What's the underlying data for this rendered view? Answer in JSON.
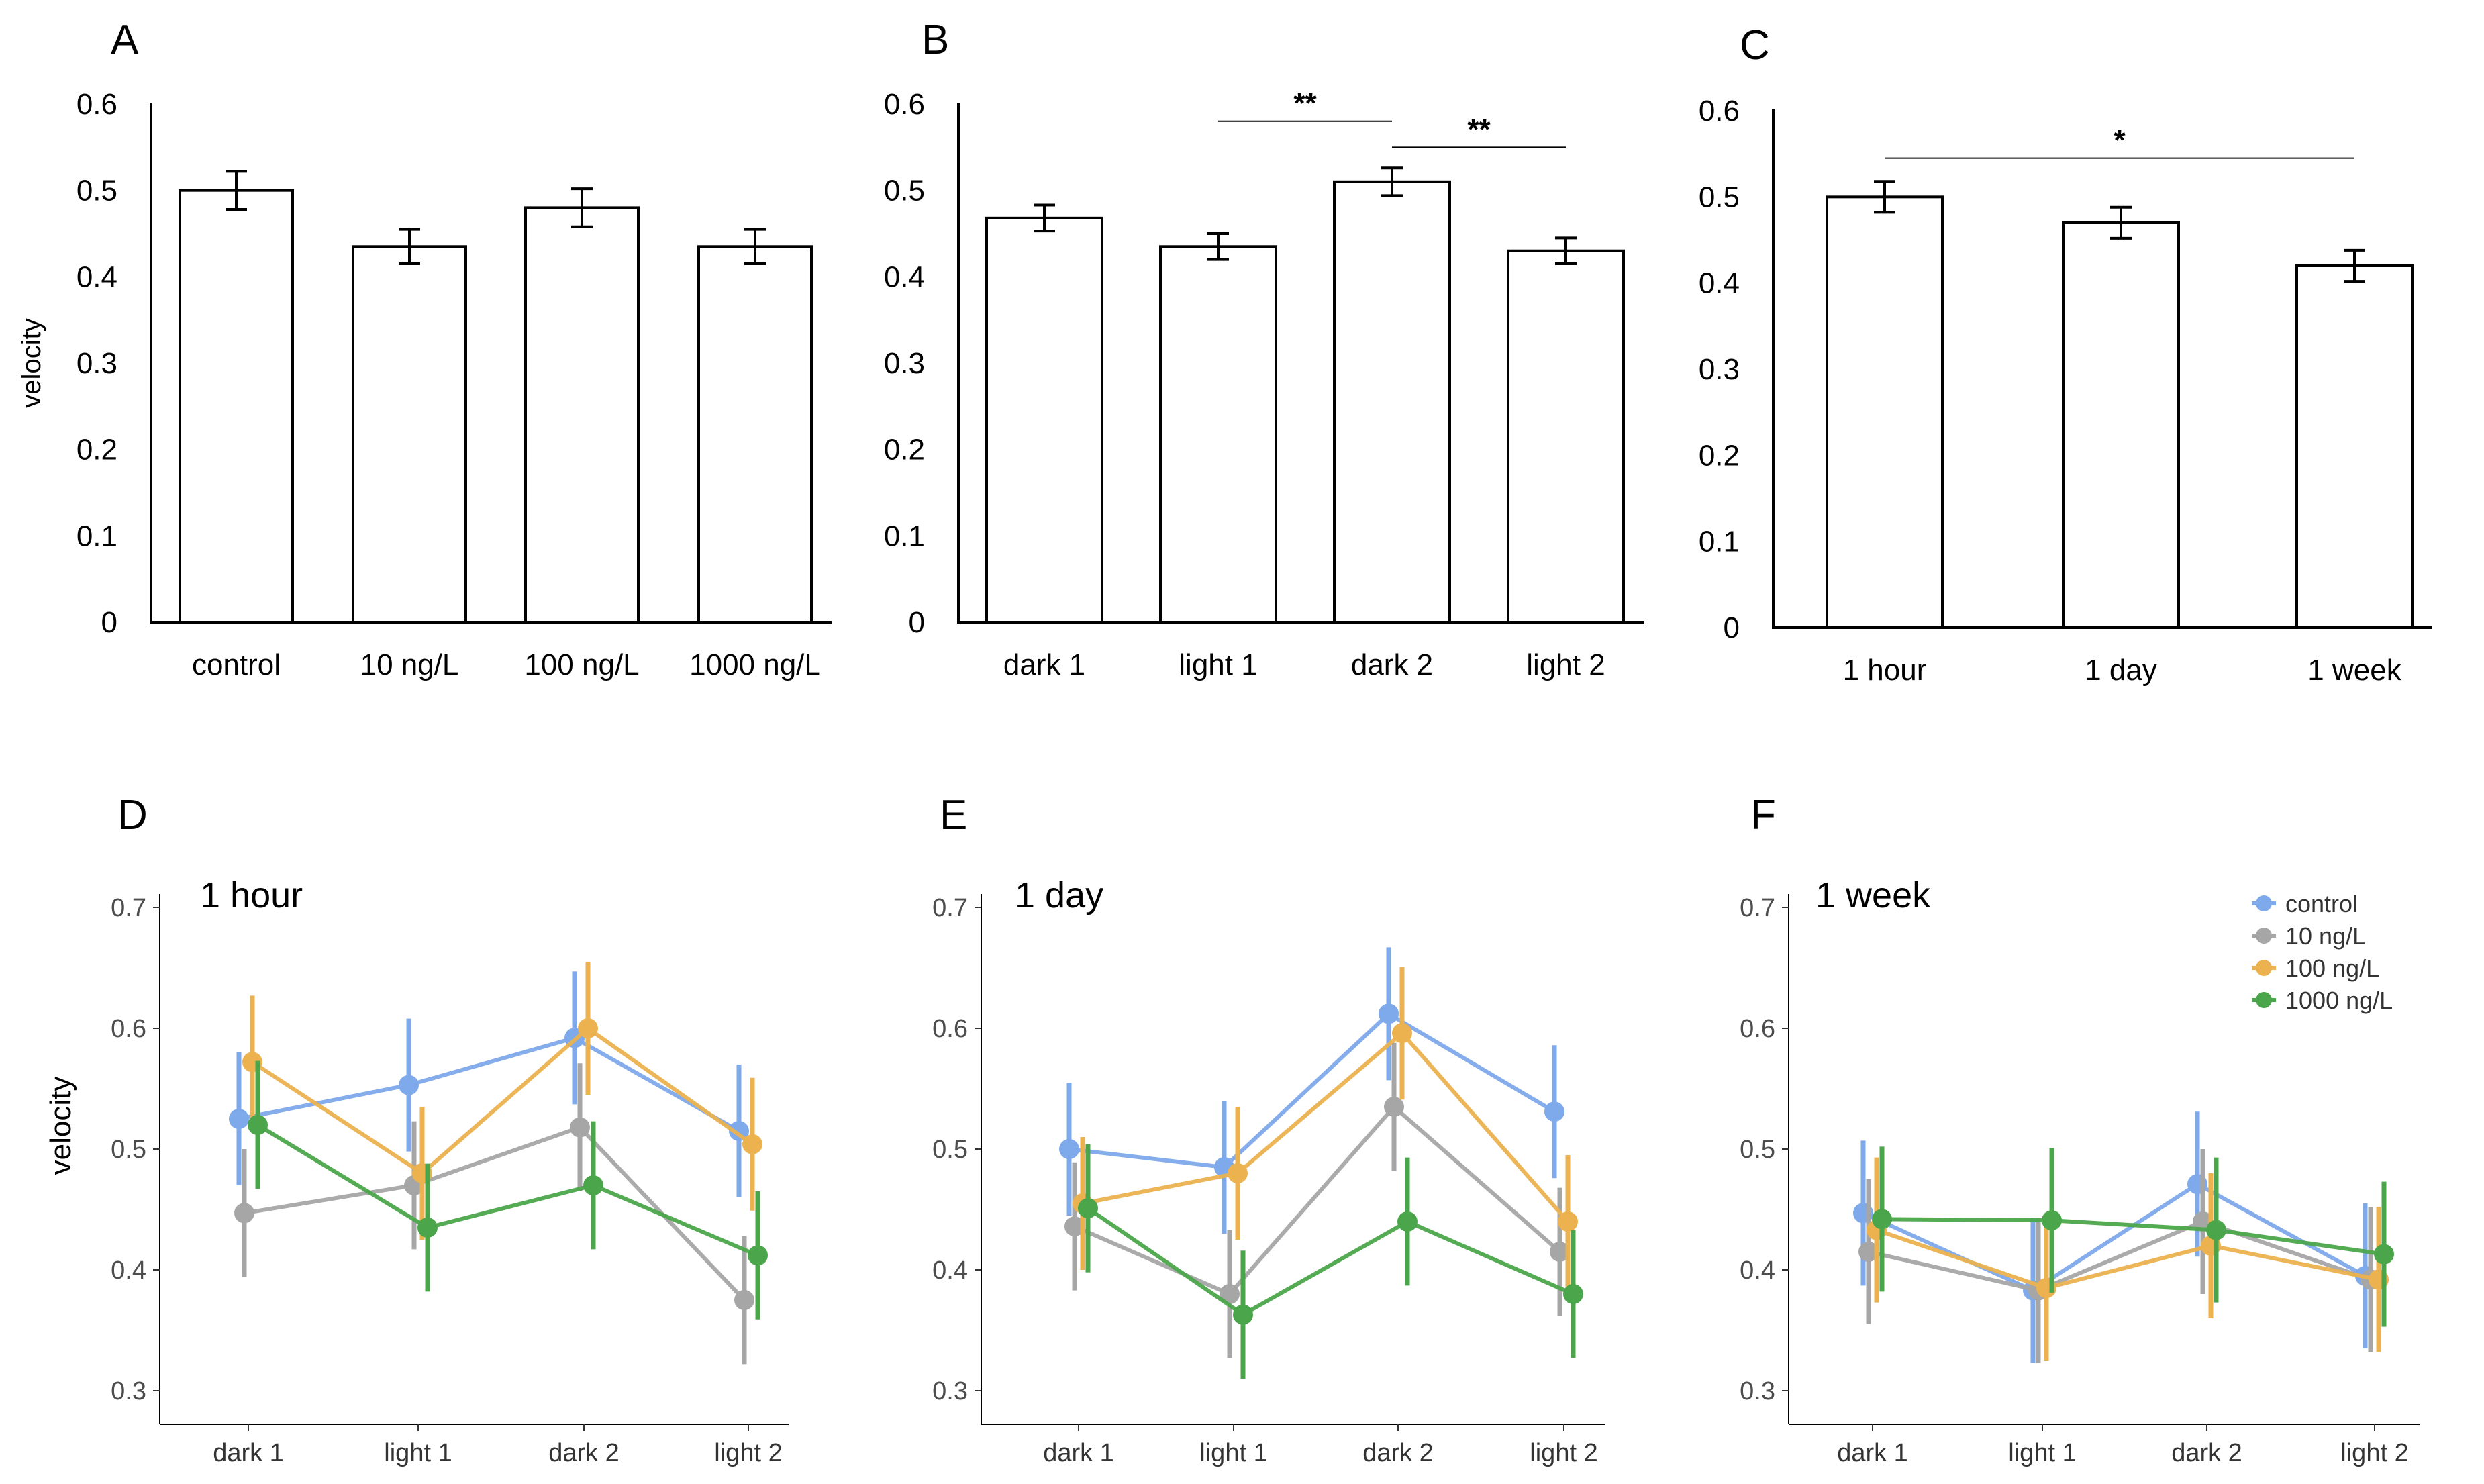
{
  "colors": {
    "control": "#7ea9ea",
    "10 ng/L": "#a6a6a6",
    "100 ng/L": "#ebb24f",
    "1000 ng/L": "#4ba64b"
  },
  "chart_data": [
    {
      "panel": "A",
      "type": "bar",
      "ylabel": "velocity",
      "ylim": [
        0,
        0.6
      ],
      "yticks": [
        "0",
        "0.1",
        "0.2",
        "0.3",
        "0.4",
        "0.5",
        "0.6"
      ],
      "categories": [
        "control",
        "10 ng/L",
        "100 ng/L",
        "1000 ng/L"
      ],
      "values": [
        0.5,
        0.435,
        0.48,
        0.435
      ],
      "errors": [
        0.022,
        0.02,
        0.022,
        0.02
      ],
      "significance": []
    },
    {
      "panel": "B",
      "type": "bar",
      "ylabel": "",
      "ylim": [
        0,
        0.6
      ],
      "yticks": [
        "0",
        "0.1",
        "0.2",
        "0.3",
        "0.4",
        "0.5",
        "0.6"
      ],
      "categories": [
        "dark 1",
        "light 1",
        "dark 2",
        "light 2"
      ],
      "values": [
        0.468,
        0.435,
        0.51,
        0.43
      ],
      "errors": [
        0.015,
        0.015,
        0.016,
        0.015
      ],
      "significance": [
        {
          "from": 1,
          "to": 2,
          "label": "**",
          "y": 0.58
        },
        {
          "from": 2,
          "to": 3,
          "label": "**",
          "y": 0.55
        }
      ]
    },
    {
      "panel": "C",
      "type": "bar",
      "ylabel": "",
      "ylim": [
        0,
        0.6
      ],
      "yticks": [
        "0",
        "0.1",
        "0.2",
        "0.3",
        "0.4",
        "0.5",
        "0.6"
      ],
      "categories": [
        "1 hour",
        "1 day",
        "1 week"
      ],
      "values": [
        0.5,
        0.47,
        0.42
      ],
      "errors": [
        0.018,
        0.018,
        0.018
      ],
      "significance": [
        {
          "from": 0,
          "to": 2,
          "label": "*",
          "y": 0.545
        }
      ]
    },
    {
      "panel": "D",
      "type": "line",
      "subtitle": "1 hour",
      "ylabel": "velocity",
      "ylim": [
        0.28,
        0.72
      ],
      "yticks": [
        "0.3",
        "0.4",
        "0.5",
        "0.6",
        "0.7"
      ],
      "categories": [
        "dark 1",
        "light 1",
        "dark 2",
        "light 2"
      ],
      "series": [
        {
          "name": "control",
          "values": [
            0.525,
            0.553,
            0.592,
            0.515
          ],
          "errors": [
            0.055,
            0.055,
            0.055,
            0.055
          ]
        },
        {
          "name": "10 ng/L",
          "values": [
            0.447,
            0.47,
            0.518,
            0.375
          ],
          "errors": [
            0.053,
            0.053,
            0.053,
            0.053
          ]
        },
        {
          "name": "100 ng/L",
          "values": [
            0.572,
            0.48,
            0.6,
            0.504
          ],
          "errors": [
            0.055,
            0.055,
            0.055,
            0.055
          ]
        },
        {
          "name": "1000 ng/L",
          "values": [
            0.52,
            0.435,
            0.47,
            0.412
          ],
          "errors": [
            0.053,
            0.053,
            0.053,
            0.053
          ]
        }
      ]
    },
    {
      "panel": "E",
      "type": "line",
      "subtitle": "1 day",
      "ylabel": "",
      "ylim": [
        0.28,
        0.72
      ],
      "yticks": [
        "0.3",
        "0.4",
        "0.5",
        "0.6",
        "0.7"
      ],
      "categories": [
        "dark 1",
        "light 1",
        "dark 2",
        "light 2"
      ],
      "series": [
        {
          "name": "control",
          "values": [
            0.5,
            0.485,
            0.612,
            0.531
          ],
          "errors": [
            0.055,
            0.055,
            0.055,
            0.055
          ]
        },
        {
          "name": "10 ng/L",
          "values": [
            0.436,
            0.38,
            0.535,
            0.415
          ],
          "errors": [
            0.053,
            0.053,
            0.053,
            0.053
          ]
        },
        {
          "name": "100 ng/L",
          "values": [
            0.455,
            0.48,
            0.596,
            0.44
          ],
          "errors": [
            0.055,
            0.055,
            0.055,
            0.055
          ]
        },
        {
          "name": "1000 ng/L",
          "values": [
            0.451,
            0.363,
            0.44,
            0.38
          ],
          "errors": [
            0.053,
            0.053,
            0.053,
            0.053
          ]
        }
      ]
    },
    {
      "panel": "F",
      "type": "line",
      "subtitle": "1 week",
      "ylabel": "",
      "ylim": [
        0.28,
        0.72
      ],
      "yticks": [
        "0.3",
        "0.4",
        "0.5",
        "0.6",
        "0.7"
      ],
      "categories": [
        "dark 1",
        "light 1",
        "dark 2",
        "light 2"
      ],
      "legend": [
        "control",
        "10 ng/L",
        "100 ng/L",
        "1000 ng/L"
      ],
      "series": [
        {
          "name": "control",
          "values": [
            0.447,
            0.383,
            0.471,
            0.395
          ],
          "errors": [
            0.06,
            0.06,
            0.06,
            0.06
          ]
        },
        {
          "name": "10 ng/L",
          "values": [
            0.415,
            0.383,
            0.44,
            0.392
          ],
          "errors": [
            0.06,
            0.06,
            0.06,
            0.06
          ]
        },
        {
          "name": "100 ng/L",
          "values": [
            0.433,
            0.385,
            0.42,
            0.392
          ],
          "errors": [
            0.06,
            0.06,
            0.06,
            0.06
          ]
        },
        {
          "name": "1000 ng/L",
          "values": [
            0.442,
            0.441,
            0.433,
            0.413
          ],
          "errors": [
            0.06,
            0.06,
            0.06,
            0.06
          ]
        }
      ]
    }
  ]
}
